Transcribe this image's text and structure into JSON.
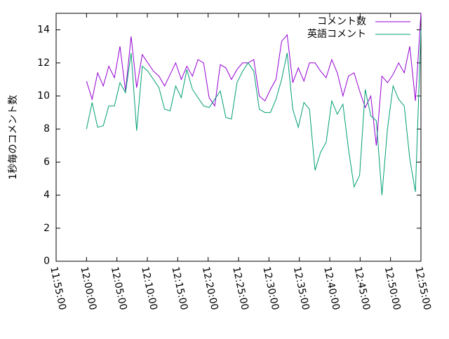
{
  "chart_data": {
    "type": "line",
    "y_label": "1秒毎のコメント数",
    "x": [
      "12:00:00",
      "12:00:55",
      "12:01:50",
      "12:02:45",
      "12:03:40",
      "12:04:35",
      "12:05:30",
      "12:06:25",
      "12:07:20",
      "12:08:15",
      "12:09:10",
      "12:10:05",
      "12:11:00",
      "12:11:55",
      "12:12:50",
      "12:13:45",
      "12:14:40",
      "12:15:35",
      "12:16:30",
      "12:17:25",
      "12:18:20",
      "12:19:15",
      "12:20:10",
      "12:21:05",
      "12:22:00",
      "12:22:55",
      "12:23:50",
      "12:24:45",
      "12:25:40",
      "12:26:35",
      "12:27:30",
      "12:28:25",
      "12:29:20",
      "12:30:15",
      "12:31:10",
      "12:32:05",
      "12:33:00",
      "12:33:55",
      "12:34:50",
      "12:35:45",
      "12:36:40",
      "12:37:35",
      "12:38:30",
      "12:39:25",
      "12:40:20",
      "12:41:15",
      "12:42:10",
      "12:43:05",
      "12:44:00",
      "12:44:55",
      "12:45:50",
      "12:46:45",
      "12:47:40",
      "12:48:35",
      "12:49:30",
      "12:50:25",
      "12:51:20",
      "12:52:15",
      "12:53:10",
      "12:54:05",
      "12:55:00"
    ],
    "series": [
      {
        "name": "コメント数",
        "color": "#9400d3",
        "values": [
          10.9,
          9.8,
          11.4,
          10.6,
          11.8,
          11.1,
          13.0,
          10.3,
          13.6,
          10.5,
          12.5,
          12.0,
          11.5,
          11.2,
          10.6,
          11.3,
          12.0,
          11.0,
          11.8,
          11.2,
          12.2,
          12.0,
          9.9,
          9.4,
          11.9,
          11.7,
          11.0,
          11.6,
          12.0,
          12.0,
          12.2,
          10.0,
          9.7,
          10.4,
          11.0,
          13.3,
          13.7,
          10.8,
          11.7,
          10.9,
          12.0,
          12.0,
          11.5,
          11.1,
          12.2,
          11.4,
          10.0,
          11.2,
          11.4,
          10.3,
          9.3,
          10.0,
          7.0,
          11.2,
          10.8,
          11.3,
          12.0,
          11.4,
          13.0,
          9.7,
          15.0
        ]
      },
      {
        "name": "英語コメント",
        "color": "#009e73",
        "values": [
          8.0,
          9.6,
          8.1,
          8.2,
          9.4,
          9.4,
          10.8,
          10.2,
          12.6,
          7.9,
          11.8,
          11.5,
          11.0,
          10.5,
          9.2,
          9.1,
          10.6,
          9.9,
          11.6,
          10.4,
          9.9,
          9.4,
          9.3,
          9.8,
          10.3,
          8.7,
          8.6,
          10.8,
          11.5,
          12.0,
          11.5,
          9.2,
          9.0,
          9.0,
          9.8,
          11.0,
          12.6,
          9.2,
          8.1,
          9.6,
          9.2,
          5.5,
          6.6,
          7.2,
          9.7,
          8.9,
          9.5,
          6.8,
          4.5,
          5.2,
          10.4,
          8.8,
          8.5,
          4.0,
          8.0,
          10.6,
          9.8,
          9.4,
          6.2,
          4.2,
          14.0
        ]
      }
    ],
    "xlim": [
      "11:55:00",
      "12:55:00"
    ],
    "xticks": [
      "11:55:00",
      "12:00:00",
      "12:05:00",
      "12:10:00",
      "12:15:00",
      "12:20:00",
      "12:25:00",
      "12:30:00",
      "12:35:00",
      "12:40:00",
      "12:45:00",
      "12:50:00",
      "12:55:00"
    ],
    "ylim": [
      0,
      15
    ],
    "yticks": [
      0,
      2,
      4,
      6,
      8,
      10,
      12,
      14
    ],
    "legend": "top-right"
  }
}
